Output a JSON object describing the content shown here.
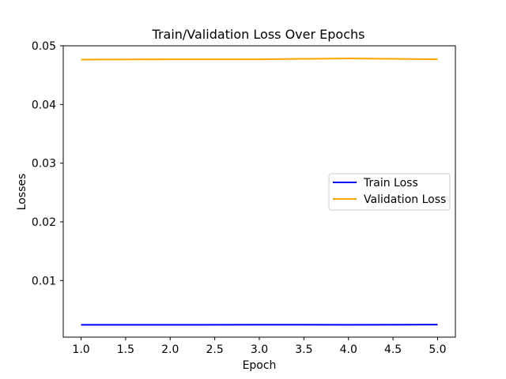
{
  "chart_data": {
    "type": "line",
    "title": "Train/Validation Loss Over Epochs",
    "xlabel": "Epoch",
    "ylabel": "Losses",
    "x": [
      1,
      2,
      3,
      4,
      5
    ],
    "series": [
      {
        "name": "Train Loss",
        "color": "#0000ff",
        "values": [
          0.00245,
          0.00245,
          0.00247,
          0.00246,
          0.00248
        ]
      },
      {
        "name": "Validation Loss",
        "color": "#ffa500",
        "values": [
          0.04765,
          0.0477,
          0.0477,
          0.04785,
          0.0477
        ]
      }
    ],
    "xlim": [
      0.8,
      5.2
    ],
    "ylim": [
      0.00035,
      0.05
    ],
    "xticks": [
      1.0,
      1.5,
      2.0,
      2.5,
      3.0,
      3.5,
      4.0,
      4.5,
      5.0
    ],
    "xtick_labels": [
      "1.0",
      "1.5",
      "2.0",
      "2.5",
      "3.0",
      "3.5",
      "4.0",
      "4.5",
      "5.0"
    ],
    "yticks": [
      0.01,
      0.02,
      0.03,
      0.04,
      0.05
    ],
    "ytick_labels": [
      "0.01",
      "0.02",
      "0.03",
      "0.04",
      "0.05"
    ],
    "grid": false,
    "legend_position": "center-right"
  }
}
